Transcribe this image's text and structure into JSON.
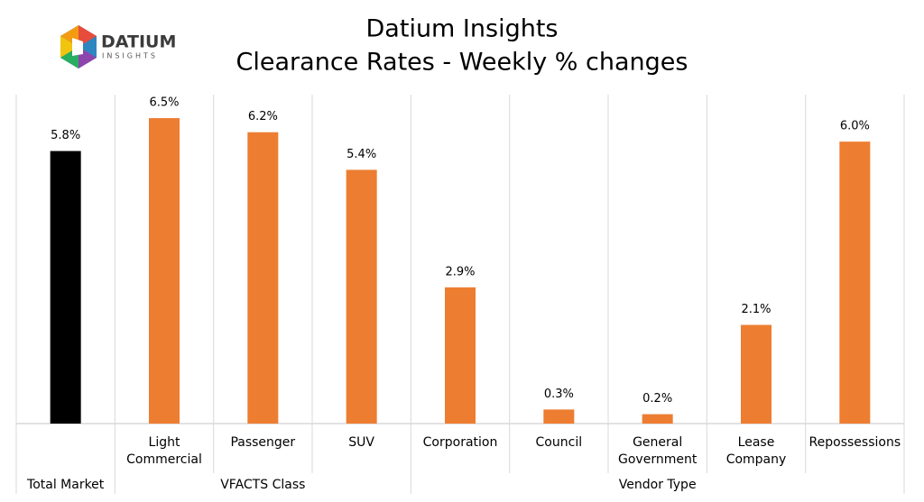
{
  "logo": {
    "name": "DATIUM",
    "tagline": "INSIGHTS"
  },
  "chart_data": {
    "type": "bar",
    "title": "Datium Insights",
    "subtitle": "Clearance Rates - Weekly % changes",
    "categories": [
      null,
      "Light Commercial",
      "Passenger",
      "SUV",
      "Corporation",
      "Council",
      "General Government",
      "Lease Company",
      "Repossessions"
    ],
    "groups": [
      {
        "label": "Total Market",
        "count": 1
      },
      {
        "label": "VFACTS Class",
        "count": 3
      },
      {
        "label": "Vendor Type",
        "count": 5
      }
    ],
    "values": [
      5.8,
      6.5,
      6.2,
      5.4,
      2.9,
      0.3,
      0.2,
      2.1,
      6.0
    ],
    "value_labels": [
      "5.8%",
      "6.5%",
      "6.2%",
      "5.4%",
      "2.9%",
      "0.3%",
      "0.2%",
      "2.1%",
      "6.0%"
    ],
    "colors": [
      "#000000",
      "#ed7d31",
      "#ed7d31",
      "#ed7d31",
      "#ed7d31",
      "#ed7d31",
      "#ed7d31",
      "#ed7d31",
      "#ed7d31"
    ],
    "ylim": [
      0,
      7
    ]
  }
}
